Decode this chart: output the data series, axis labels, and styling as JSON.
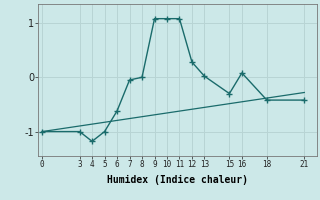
{
  "xlabel": "Humidex (Indice chaleur)",
  "ylabel": "",
  "bg_color": "#cce8e8",
  "grid_color": "#b8d4d4",
  "line_color": "#1a6b6b",
  "line1_x": [
    0,
    3,
    4,
    5,
    6,
    7,
    8,
    9,
    10,
    11,
    12,
    13,
    15,
    16,
    18,
    21
  ],
  "line1_y": [
    -1.0,
    -1.0,
    -1.18,
    -1.0,
    -0.62,
    -0.05,
    0.0,
    1.08,
    1.08,
    1.08,
    0.28,
    0.02,
    -0.3,
    0.08,
    -0.42,
    -0.42
  ],
  "line2_x": [
    0,
    21
  ],
  "line2_y": [
    -1.0,
    -0.28
  ],
  "xticks": [
    0,
    3,
    4,
    5,
    6,
    7,
    8,
    9,
    10,
    11,
    12,
    13,
    15,
    16,
    18,
    21
  ],
  "yticks": [
    -1,
    0,
    1
  ],
  "xlim": [
    -0.3,
    22
  ],
  "ylim": [
    -1.45,
    1.35
  ]
}
